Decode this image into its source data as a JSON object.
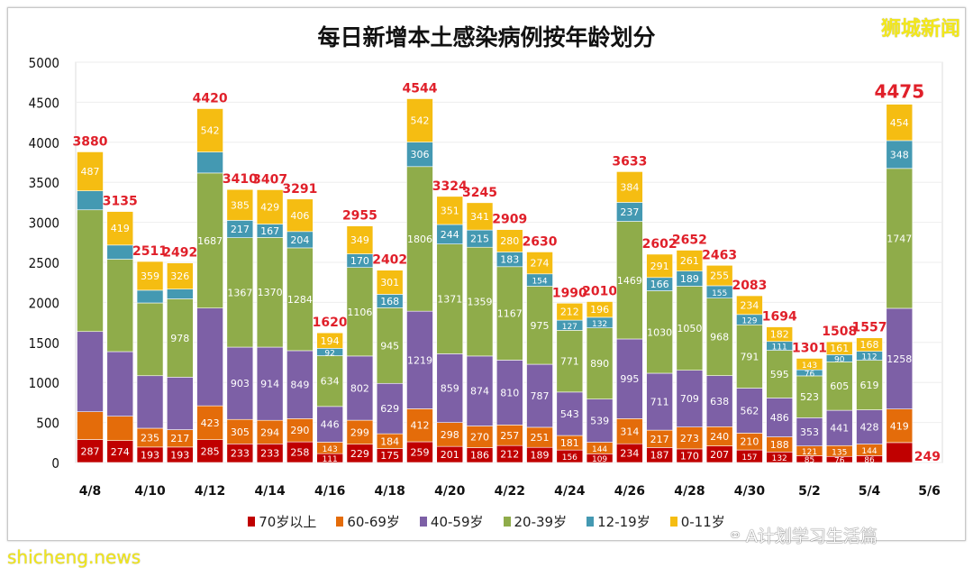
{
  "watermarks": {
    "top_right": "狮城新闻",
    "bottom_left": "shicheng.news",
    "wechat": "A计划学习生活篇"
  },
  "chart_data": {
    "type": "bar",
    "stacked": true,
    "title": "每日新增本土感染病例按年龄划分",
    "xlabel": "",
    "ylabel": "",
    "ylim": [
      0,
      5000
    ],
    "yticks": [
      0,
      500,
      1000,
      1500,
      2000,
      2500,
      3000,
      3500,
      4000,
      4500,
      5000
    ],
    "grid": true,
    "legend_position": "bottom",
    "categories": [
      "4/8",
      "4/9",
      "4/10",
      "4/11",
      "4/12",
      "4/13",
      "4/14",
      "4/15",
      "4/16",
      "4/17",
      "4/18",
      "4/19",
      "4/20",
      "4/21",
      "4/22",
      "4/23",
      "4/24",
      "4/25",
      "4/26",
      "4/27",
      "4/28",
      "4/29",
      "4/30",
      "5/1",
      "5/2",
      "5/3",
      "5/4",
      "5/5",
      "5/6"
    ],
    "tick_labels": [
      "4/8",
      "4/10",
      "4/12",
      "4/14",
      "4/16",
      "4/18",
      "4/20",
      "4/22",
      "4/24",
      "4/26",
      "4/28",
      "4/30",
      "5/2",
      "5/4",
      "5/6"
    ],
    "series": [
      {
        "name": "70岁以上",
        "color": "#c00000",
        "values": [
          287,
          274,
          193,
          193,
          285,
          233,
          233,
          258,
          111,
          229,
          175,
          259,
          201,
          186,
          212,
          189,
          156,
          109,
          234,
          187,
          170,
          207,
          157,
          132,
          85,
          76,
          86,
          249,
          null
        ]
      },
      {
        "name": "60-69岁",
        "color": "#e46c0a",
        "values": [
          347,
          304,
          235,
          217,
          423,
          305,
          294,
          290,
          143,
          299,
          184,
          412,
          298,
          270,
          257,
          251,
          181,
          144,
          314,
          217,
          273,
          240,
          210,
          188,
          121,
          135,
          144,
          419,
          null
        ]
      },
      {
        "name": "40-59岁",
        "color": "#7d60a6",
        "values": [
          1002,
          807,
          656,
          656,
          1221,
          903,
          914,
          849,
          446,
          802,
          629,
          1219,
          859,
          874,
          810,
          787,
          543,
          539,
          995,
          711,
          709,
          638,
          562,
          486,
          353,
          441,
          428,
          1258,
          null
        ]
      },
      {
        "name": "20-39岁",
        "color": "#8fac4a",
        "values": [
          1520,
          1154,
          909,
          978,
          1687,
          1367,
          1370,
          1284,
          634,
          1106,
          945,
          1806,
          1371,
          1359,
          1167,
          975,
          771,
          890,
          1469,
          1030,
          1050,
          968,
          791,
          595,
          523,
          605,
          619,
          1747,
          null
        ]
      },
      {
        "name": "12-19岁",
        "color": "#4499b2",
        "values": [
          237,
          177,
          159,
          122,
          262,
          217,
          167,
          204,
          92,
          170,
          168,
          306,
          244,
          215,
          183,
          154,
          127,
          132,
          237,
          166,
          189,
          155,
          129,
          111,
          76,
          90,
          112,
          348,
          null
        ]
      },
      {
        "name": "0-11岁",
        "color": "#f5bd12",
        "values": [
          487,
          419,
          359,
          326,
          542,
          385,
          429,
          406,
          194,
          349,
          301,
          542,
          351,
          341,
          280,
          274,
          212,
          196,
          384,
          291,
          261,
          255,
          234,
          182,
          143,
          161,
          168,
          454,
          null
        ]
      }
    ],
    "totals": [
      3880,
      3135,
      2511,
      2492,
      4420,
      3410,
      3407,
      3291,
      1620,
      2955,
      2402,
      4544,
      3324,
      3245,
      2909,
      2630,
      1990,
      2010,
      3633,
      2602,
      2652,
      2463,
      2083,
      1694,
      1301,
      1508,
      1557,
      4475,
      null
    ],
    "unlabeled_segments": {
      "60-69岁": [
        "4/8",
        "4/9"
      ],
      "40-59岁": [
        "4/8",
        "4/9",
        "4/10",
        "4/11",
        "4/12"
      ],
      "20-39岁": [
        "4/8",
        "4/9",
        "4/10"
      ],
      "12-19岁": [
        "4/8",
        "4/9",
        "4/10",
        "4/11",
        "4/12"
      ]
    },
    "total_color": "#e0202a"
  }
}
